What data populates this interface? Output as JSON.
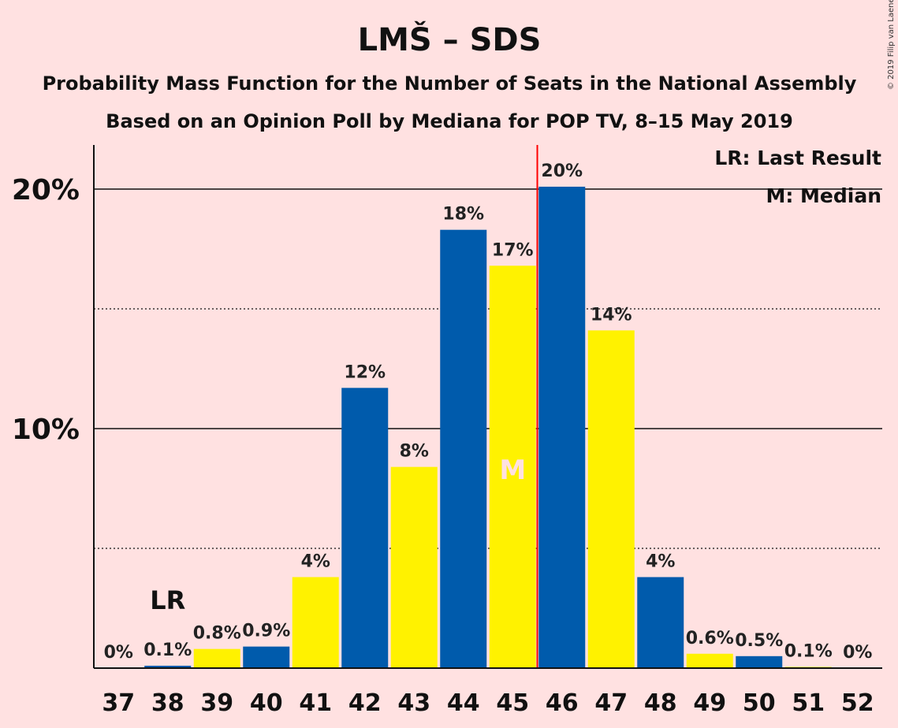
{
  "copyright": "© 2019 Filip van Laenen",
  "chart_data": {
    "type": "bar",
    "title": "LMŠ – SDS",
    "subtitle": "Probability Mass Function for the Number of Seats in the National Assembly",
    "subtitle2": "Based on an Opinion Poll by Mediana for POP TV, 8–15 May 2019",
    "categories": [
      "37",
      "38",
      "39",
      "40",
      "41",
      "42",
      "43",
      "44",
      "45",
      "46",
      "47",
      "48",
      "49",
      "50",
      "51",
      "52"
    ],
    "values": [
      0,
      0.1,
      0.8,
      0.9,
      3.8,
      11.7,
      8.4,
      18.3,
      16.8,
      20.1,
      14.1,
      3.8,
      0.6,
      0.5,
      0.05,
      0
    ],
    "value_labels": [
      "0%",
      "0.1%",
      "0.8%",
      "0.9%",
      "4%",
      "12%",
      "8%",
      "18%",
      "17%",
      "20%",
      "14%",
      "4%",
      "0.6%",
      "0.5%",
      "0.1%",
      "0%"
    ],
    "bar_colors": [
      "#005BAC",
      "#005BAC",
      "#FFF200",
      "#005BAC",
      "#FFF200",
      "#005BAC",
      "#FFF200",
      "#005BAC",
      "#FFF200",
      "#005BAC",
      "#FFF200",
      "#005BAC",
      "#FFF200",
      "#005BAC",
      "#FFF200",
      "#005BAC"
    ],
    "ylim": [
      0,
      22
    ],
    "y_ticks": [
      10,
      20
    ],
    "y_tick_labels": [
      "10%",
      "20%"
    ],
    "y_minor_ticks": [
      5,
      15
    ],
    "last_result": {
      "seat": "38",
      "label": "LR"
    },
    "median": {
      "seat": "45",
      "label": "M"
    },
    "majority_line_after": "45",
    "majority_color": "#FF0000",
    "legend": [
      "LR: Last Result",
      "M: Median"
    ],
    "legend_position": "top-right",
    "grid": true
  }
}
